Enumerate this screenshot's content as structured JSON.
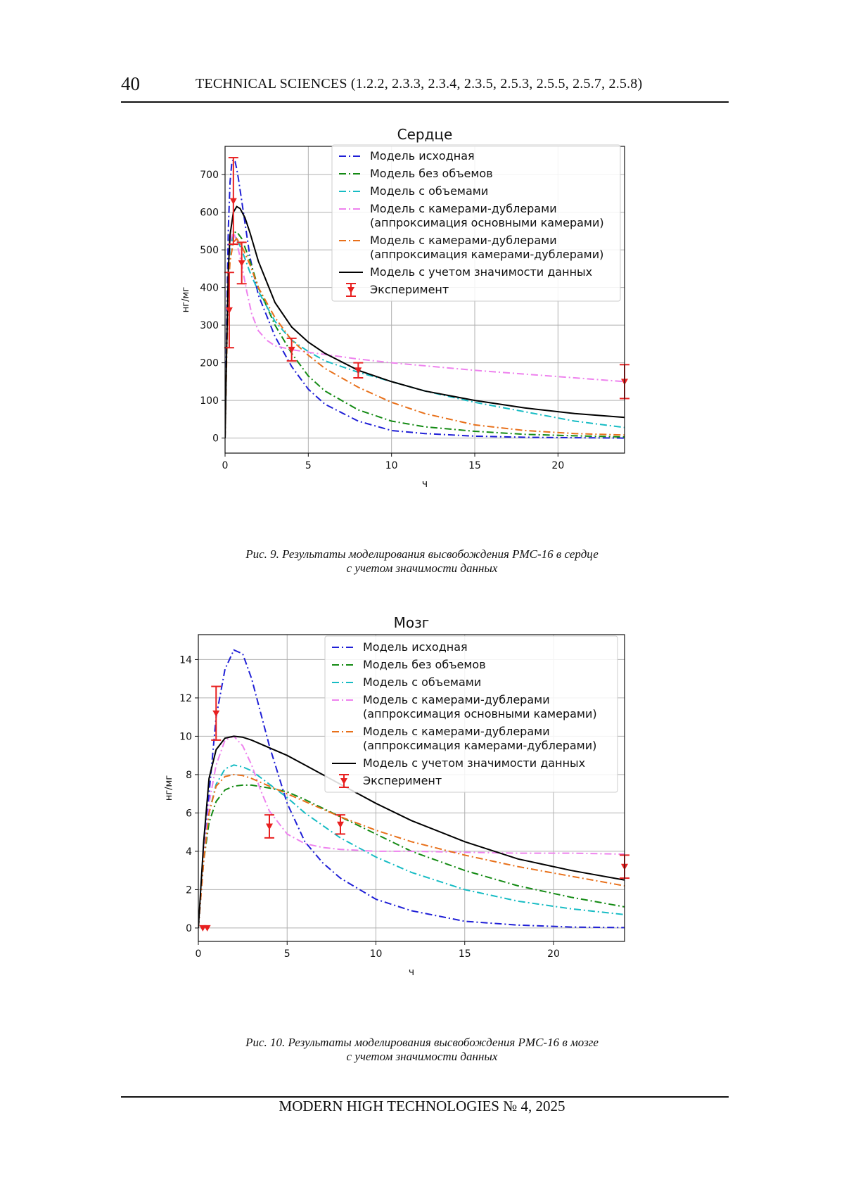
{
  "header": {
    "page_number": "40",
    "journal": "TECHNICAL SCIENCES (1.2.2, 2.3.3, 2.3.4, 2.3.5, 2.5.3, 2.5.5, 2.5.7, 2.5.8)"
  },
  "footer": {
    "text": "MODERN HIGH TECHNOLOGIES   № 4, 2025"
  },
  "figures": [
    {
      "caption_line1": "Рис. 9. Результаты моделирования высвобождения PMC-16 в сердце",
      "caption_line2": "с учетом значимости данных"
    },
    {
      "caption_line1": "Рис. 10. Результаты моделирования высвобождения PMC-16 в мозге",
      "caption_line2": "с учетом значимости данных"
    }
  ],
  "chart_data": [
    {
      "type": "line",
      "title": "Сердце",
      "xlabel": "ч",
      "ylabel": "нг/мг",
      "xlim": [
        0,
        24
      ],
      "ylim": [
        -40,
        775
      ],
      "xticks": [
        0,
        5,
        10,
        15,
        20
      ],
      "yticks": [
        0,
        100,
        200,
        300,
        400,
        500,
        600,
        700
      ],
      "grid": true,
      "legend_position": "top-right",
      "series": [
        {
          "name": "Модель исходная",
          "color": "#1f1fd6",
          "dash": "10 4 2 4",
          "x": [
            0,
            0.1,
            0.2,
            0.3,
            0.4,
            0.5,
            0.6,
            0.7,
            0.8,
            1,
            1.5,
            2,
            3,
            4,
            5,
            6,
            8,
            10,
            12,
            15,
            18,
            21,
            24
          ],
          "y": [
            0,
            320,
            560,
            680,
            730,
            740,
            735,
            715,
            690,
            630,
            480,
            380,
            270,
            190,
            130,
            90,
            45,
            20,
            12,
            5,
            2,
            1,
            0
          ]
        },
        {
          "name": "Модель без объемов",
          "color": "#138a13",
          "dash": "10 4 2 4",
          "x": [
            0,
            0.1,
            0.2,
            0.3,
            0.5,
            0.7,
            1,
            1.5,
            2,
            3,
            4,
            5,
            6,
            8,
            10,
            12,
            15,
            18,
            21,
            24
          ],
          "y": [
            0,
            250,
            420,
            500,
            545,
            548,
            530,
            470,
            400,
            300,
            225,
            165,
            125,
            75,
            45,
            30,
            18,
            10,
            6,
            3
          ]
        },
        {
          "name": "Модель с объемами",
          "color": "#17bcc4",
          "dash": "10 4 2 4",
          "x": [
            0,
            0.1,
            0.2,
            0.3,
            0.5,
            0.7,
            1,
            1.5,
            2,
            3,
            4,
            5,
            6,
            8,
            10,
            12,
            15,
            18,
            21,
            24
          ],
          "y": [
            0,
            250,
            420,
            500,
            540,
            530,
            500,
            440,
            390,
            310,
            260,
            230,
            205,
            175,
            150,
            125,
            95,
            70,
            45,
            28
          ]
        },
        {
          "name": "Модель с камерами-дублерами\n(аппроксимация основными камерами)",
          "color": "#ee82ee",
          "dash": "10 4 2 4",
          "x": [
            0,
            0.1,
            0.2,
            0.3,
            0.5,
            0.7,
            1,
            1.3,
            1.6,
            2,
            2.5,
            3,
            4,
            5,
            6,
            8,
            10,
            12,
            15,
            18,
            21,
            24
          ],
          "y": [
            0,
            250,
            450,
            520,
            550,
            520,
            460,
            390,
            330,
            285,
            260,
            245,
            235,
            228,
            222,
            210,
            200,
            192,
            180,
            170,
            160,
            150
          ]
        },
        {
          "name": "Модель с камерами-дублерами\n(аппроксимация камерами-дублерами)",
          "color": "#e8701a",
          "dash": "10 4 2 4",
          "x": [
            0,
            0.1,
            0.2,
            0.3,
            0.5,
            0.7,
            1,
            1.5,
            2,
            3,
            4,
            5,
            6,
            8,
            10,
            12,
            15,
            18,
            21,
            24
          ],
          "y": [
            0,
            220,
            390,
            470,
            520,
            530,
            510,
            460,
            400,
            320,
            260,
            220,
            185,
            135,
            95,
            65,
            35,
            20,
            12,
            8
          ]
        },
        {
          "name": "Модель с учетом значимости данных",
          "color": "#000000",
          "dash": "",
          "x": [
            0,
            0.1,
            0.2,
            0.3,
            0.5,
            0.7,
            0.9,
            1.2,
            1.5,
            2,
            3,
            4,
            5,
            6,
            8,
            10,
            12,
            15,
            18,
            21,
            24
          ],
          "y": [
            0,
            250,
            450,
            540,
            600,
            615,
            610,
            585,
            545,
            470,
            360,
            295,
            255,
            225,
            180,
            150,
            125,
            100,
            80,
            65,
            55
          ]
        }
      ],
      "experiment": {
        "name": "Эксперимент",
        "color": "#e82020",
        "x": [
          0.25,
          0.5,
          1,
          4,
          8,
          24
        ],
        "y": [
          340,
          630,
          465,
          235,
          180,
          150
        ],
        "err": [
          100,
          115,
          55,
          30,
          20,
          45
        ]
      }
    },
    {
      "type": "line",
      "title": "Мозг",
      "xlabel": "ч",
      "ylabel": "нг/мг",
      "xlim": [
        0,
        24
      ],
      "ylim": [
        -0.7,
        15.3
      ],
      "xticks": [
        0,
        5,
        10,
        15,
        20
      ],
      "yticks": [
        0,
        2,
        4,
        6,
        8,
        10,
        12,
        14
      ],
      "grid": true,
      "legend_position": "top-right",
      "series": [
        {
          "name": "Модель исходная",
          "color": "#1f1fd6",
          "dash": "10 4 2 4",
          "x": [
            0,
            0.3,
            0.6,
            1,
            1.5,
            2,
            2.5,
            3,
            4,
            5,
            6,
            7,
            8,
            10,
            12,
            15,
            18,
            21,
            24
          ],
          "y": [
            0,
            3.5,
            7,
            11,
            13.5,
            14.5,
            14.3,
            13,
            9.5,
            6.5,
            4.5,
            3.4,
            2.6,
            1.5,
            0.9,
            0.35,
            0.15,
            0.05,
            0.02
          ]
        },
        {
          "name": "Модель без объемов",
          "color": "#138a13",
          "dash": "10 4 2 4",
          "x": [
            0,
            0.3,
            0.6,
            1,
            1.5,
            2,
            2.5,
            3,
            4,
            5,
            6,
            8,
            10,
            12,
            15,
            18,
            21,
            24
          ],
          "y": [
            0,
            3.5,
            5.5,
            6.6,
            7.2,
            7.4,
            7.45,
            7.45,
            7.3,
            7.1,
            6.7,
            5.8,
            4.9,
            4,
            3,
            2.2,
            1.6,
            1.1
          ]
        },
        {
          "name": "Модель с объемами",
          "color": "#17bcc4",
          "dash": "10 4 2 4",
          "x": [
            0,
            0.3,
            0.6,
            1,
            1.5,
            2,
            2.5,
            3,
            4,
            5,
            6,
            8,
            10,
            12,
            15,
            18,
            21,
            24
          ],
          "y": [
            0,
            3.5,
            6,
            7.5,
            8.3,
            8.5,
            8.4,
            8.2,
            7.5,
            6.8,
            6,
            4.7,
            3.7,
            2.9,
            2,
            1.4,
            1,
            0.7
          ]
        },
        {
          "name": "Модель с камерами-дублерами\n(аппроксимация основными камерами)",
          "color": "#ee82ee",
          "dash": "10 4 2 4",
          "x": [
            0,
            0.3,
            0.6,
            1,
            1.5,
            2,
            2.5,
            3,
            3.5,
            4,
            5,
            6,
            7,
            8,
            10,
            12,
            15,
            18,
            21,
            24
          ],
          "y": [
            0,
            3.5,
            6.5,
            8.5,
            9.8,
            10,
            9.5,
            8.5,
            7.2,
            6.1,
            4.9,
            4.4,
            4.2,
            4.1,
            4,
            4,
            3.95,
            3.9,
            3.9,
            3.85
          ]
        },
        {
          "name": "Модель с камерами-дублерами\n(аппроксимация камерами-дублерами)",
          "color": "#e8701a",
          "dash": "10 4 2 4",
          "x": [
            0,
            0.3,
            0.6,
            1,
            1.5,
            2,
            2.5,
            3,
            4,
            5,
            6,
            8,
            10,
            12,
            15,
            18,
            21,
            24
          ],
          "y": [
            0,
            3.5,
            6,
            7.4,
            7.9,
            8,
            7.95,
            7.8,
            7.4,
            7,
            6.6,
            5.8,
            5.1,
            4.5,
            3.8,
            3.2,
            2.7,
            2.2
          ]
        },
        {
          "name": "Модель с учетом значимости данных",
          "color": "#000000",
          "dash": "",
          "x": [
            0,
            0.3,
            0.6,
            1,
            1.5,
            2,
            2.5,
            3,
            4,
            5,
            6,
            8,
            10,
            12,
            15,
            18,
            21,
            24
          ],
          "y": [
            0,
            4.5,
            7.8,
            9.3,
            9.9,
            10,
            9.95,
            9.8,
            9.4,
            9,
            8.5,
            7.5,
            6.5,
            5.6,
            4.5,
            3.6,
            3,
            2.5
          ]
        }
      ],
      "experiment": {
        "name": "Эксперимент",
        "color": "#e82020",
        "x": [
          0.25,
          0.5,
          1,
          4,
          8,
          24
        ],
        "y": [
          0,
          0,
          11.2,
          5.3,
          5.4,
          3.2
        ],
        "err": [
          0,
          0,
          1.4,
          0.6,
          0.5,
          0.6
        ]
      }
    }
  ]
}
